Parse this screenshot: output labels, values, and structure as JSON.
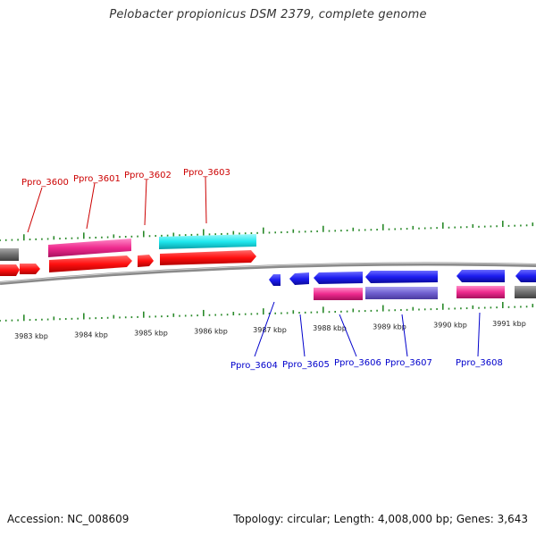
{
  "title": "Pelobacter propionicus DSM 2379, complete genome",
  "footer": {
    "accession": "Accession: NC_008609",
    "info": "Topology: circular; Length: 4,008,000 bp; Genes: 3,643"
  },
  "axis_ticks": [
    "3983 kbp",
    "3984 kbp",
    "3985 kbp",
    "3986 kbp",
    "3987 kbp",
    "3988 kbp",
    "3989 kbp",
    "3990 kbp",
    "3991 kbp"
  ],
  "genes_top": [
    "Ppro_3600",
    "Ppro_3601",
    "Ppro_3602",
    "Ppro_3603"
  ],
  "genes_bottom": [
    "Ppro_3604",
    "Ppro_3605",
    "Ppro_3606",
    "Ppro_3607",
    "Ppro_3608"
  ],
  "colors": {
    "forward_gene": "#ff1010",
    "reverse_gene": "#1c1cf0",
    "pink_feature": "#ee2a8e",
    "cyan_feature": "#1ee8ee",
    "purple_feature": "#7060d0",
    "gray_feature": "#707070",
    "tick_green": "#2a8a2a",
    "top_label": "#cc0000",
    "bottom_label": "#0000cc"
  }
}
